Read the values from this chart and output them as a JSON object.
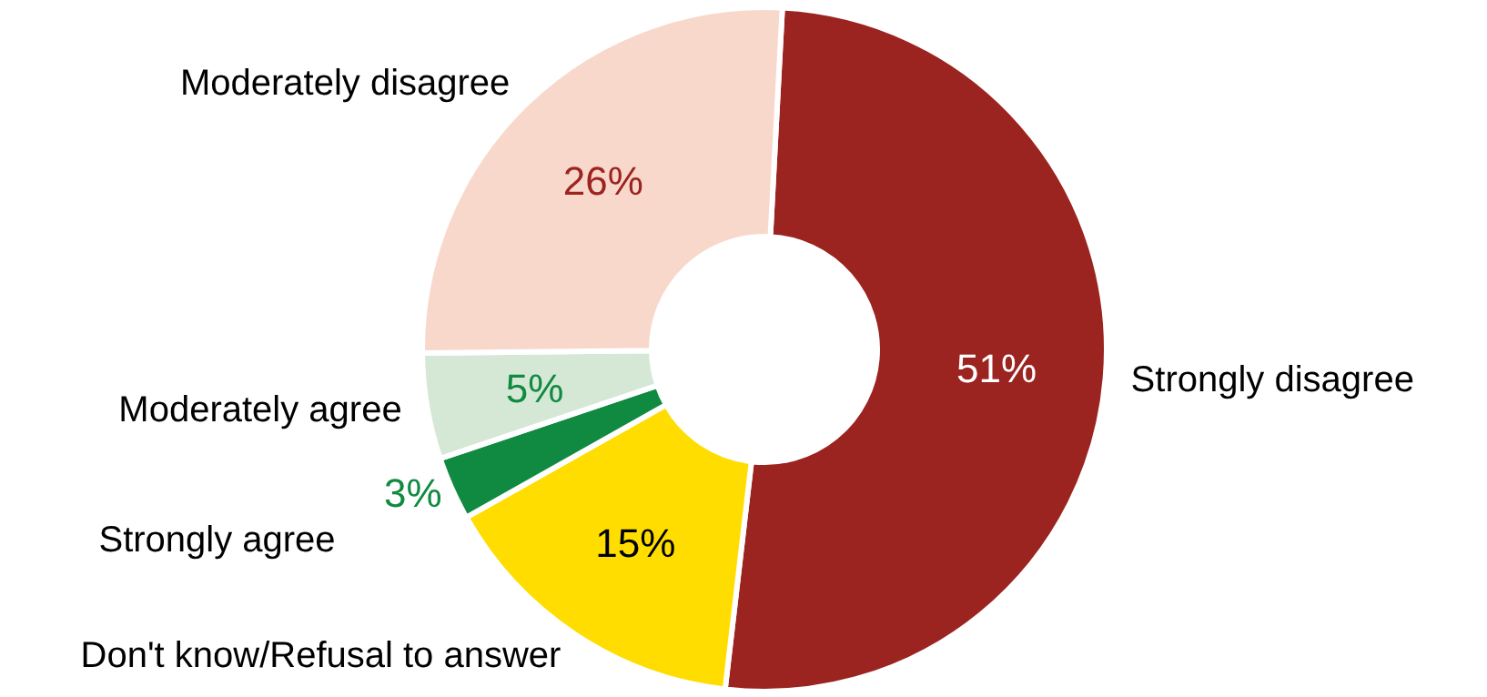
{
  "chart_data": {
    "type": "donut",
    "categories": [
      "Strongly disagree",
      "Don't know/Refusal to answer",
      "Strongly agree",
      "Moderately agree",
      "Moderately disagree"
    ],
    "values": [
      51,
      15,
      3,
      5,
      26
    ],
    "colors": [
      "#9b2320",
      "#ffdd00",
      "#108a40",
      "#d5e8d6",
      "#f9d8cc"
    ],
    "value_labels": [
      "51%",
      "15%",
      "3%",
      "5%",
      "26%"
    ],
    "legend": false
  }
}
